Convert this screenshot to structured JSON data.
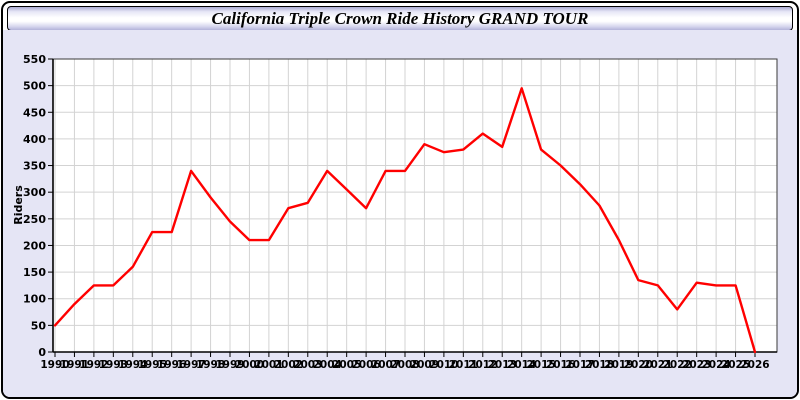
{
  "window": {
    "title": "California Triple Crown Ride History GRAND TOUR"
  },
  "colors": {
    "line": "#ff0000",
    "panel_bg": "#e5e5f5",
    "plot_bg": "#ffffff",
    "grid": "#d3d3d3",
    "axis_box": "#3a3a3a",
    "axis_main": "#000000",
    "label_text": "#000000"
  },
  "chart_data": {
    "type": "line",
    "title": "California Triple Crown Ride History GRAND TOUR",
    "xlabel": "",
    "ylabel": "Riders",
    "x": [
      1990,
      1991,
      1992,
      1993,
      1994,
      1995,
      1996,
      1997,
      1998,
      1999,
      2000,
      2001,
      2002,
      2003,
      2004,
      2005,
      2006,
      2007,
      2008,
      2009,
      2010,
      2011,
      2012,
      2013,
      2014,
      2015,
      2016,
      2017,
      2018,
      2019,
      2020,
      2021,
      2022,
      2023,
      2024,
      2025,
      2026
    ],
    "series": [
      {
        "name": "Riders",
        "color": "#ff0000",
        "values": [
          50,
          90,
          125,
          125,
          160,
          225,
          225,
          340,
          290,
          245,
          210,
          210,
          270,
          280,
          340,
          305,
          270,
          340,
          340,
          390,
          375,
          380,
          410,
          385,
          495,
          380,
          350,
          315,
          275,
          210,
          135,
          125,
          80,
          130,
          125,
          125,
          0
        ]
      }
    ],
    "ylim": [
      0,
      550
    ],
    "ytick_step": 50,
    "grid": true,
    "legend": "none"
  }
}
